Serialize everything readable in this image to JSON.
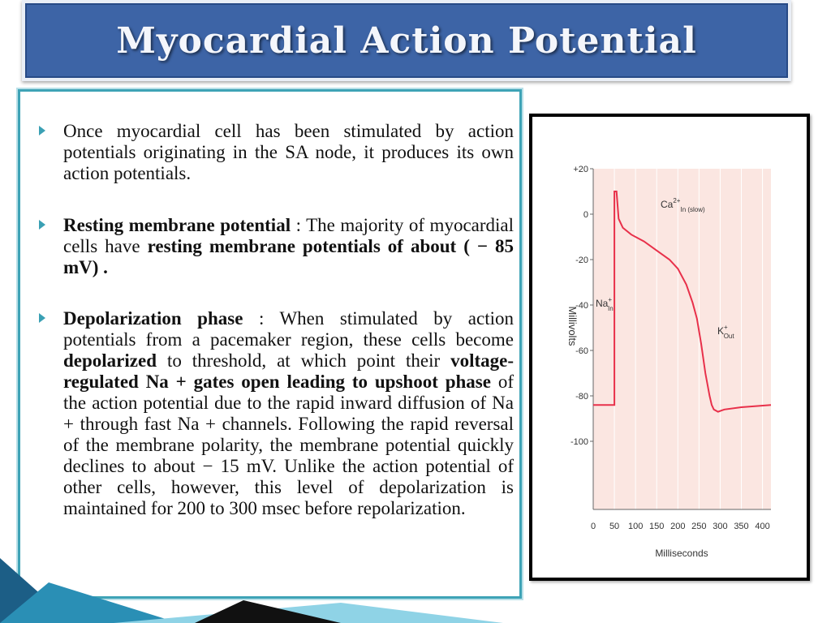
{
  "slide": {
    "title": "Myocardial Action Potential"
  },
  "bullets": {
    "b1": {
      "text": "Once myocardial cell has been stimulated by action potentials originating in the SA node, it produces its own action potentials."
    },
    "b2": {
      "label": "Resting membrane potential",
      "sep": " : The majority of myocardial cells have ",
      "bold2": "resting membrane potentials of about ( − 85 mV) ."
    },
    "b3": {
      "label": "Depolarization phase",
      "t1": " : When stimulated by action potentials from a pacemaker region, these cells become ",
      "bold_depol": "depolarized",
      "t2": " to threshold, at which point their ",
      "bold_gates": "voltage-regulated Na + gates open leading to upshoot phase",
      "t3": " of the action potential due to the rapid inward diffusion of Na + through fast Na + channels. Following the rapid reversal of the membrane polarity, the membrane potential quickly declines to about − 15 mV. Unlike the action potential of other cells, however, this level of depolarization is maintained for 200 to 300 msec before repolarization."
    }
  },
  "chart_data": {
    "type": "line",
    "title": "",
    "xlabel": "Milliseconds",
    "ylabel": "Millivolts",
    "xlim": [
      0,
      420
    ],
    "ylim": [
      -130,
      20
    ],
    "x_ticks": [
      "0",
      "50",
      "100",
      "150",
      "200",
      "250",
      "300",
      "350",
      "400"
    ],
    "y_ticks": [
      "+20",
      "0",
      "-20",
      "-40",
      "-60",
      "-80",
      "-100"
    ],
    "grid": true,
    "series": [
      {
        "color": "#e8304a",
        "x": [
          0,
          50,
          50,
          55,
          60,
          70,
          90,
          120,
          150,
          180,
          200,
          220,
          235,
          245,
          255,
          265,
          275,
          280,
          285,
          295,
          310,
          350,
          420
        ],
        "y": [
          -84,
          -84,
          10,
          10,
          -2,
          -6,
          -9,
          -12,
          -16,
          -20,
          -24,
          -31,
          -39,
          -46,
          -57,
          -70,
          -80,
          -84,
          -86,
          -87,
          -86,
          -85,
          -84
        ]
      }
    ],
    "annotations": [
      {
        "text": "Ca",
        "sup": "2+",
        "sub": "In (slow)"
      },
      {
        "text": "Na",
        "sup": "+",
        "sub": "In"
      },
      {
        "text": "K",
        "sup": "+",
        "sub": "Out"
      }
    ],
    "background": "#fbe6e1"
  }
}
